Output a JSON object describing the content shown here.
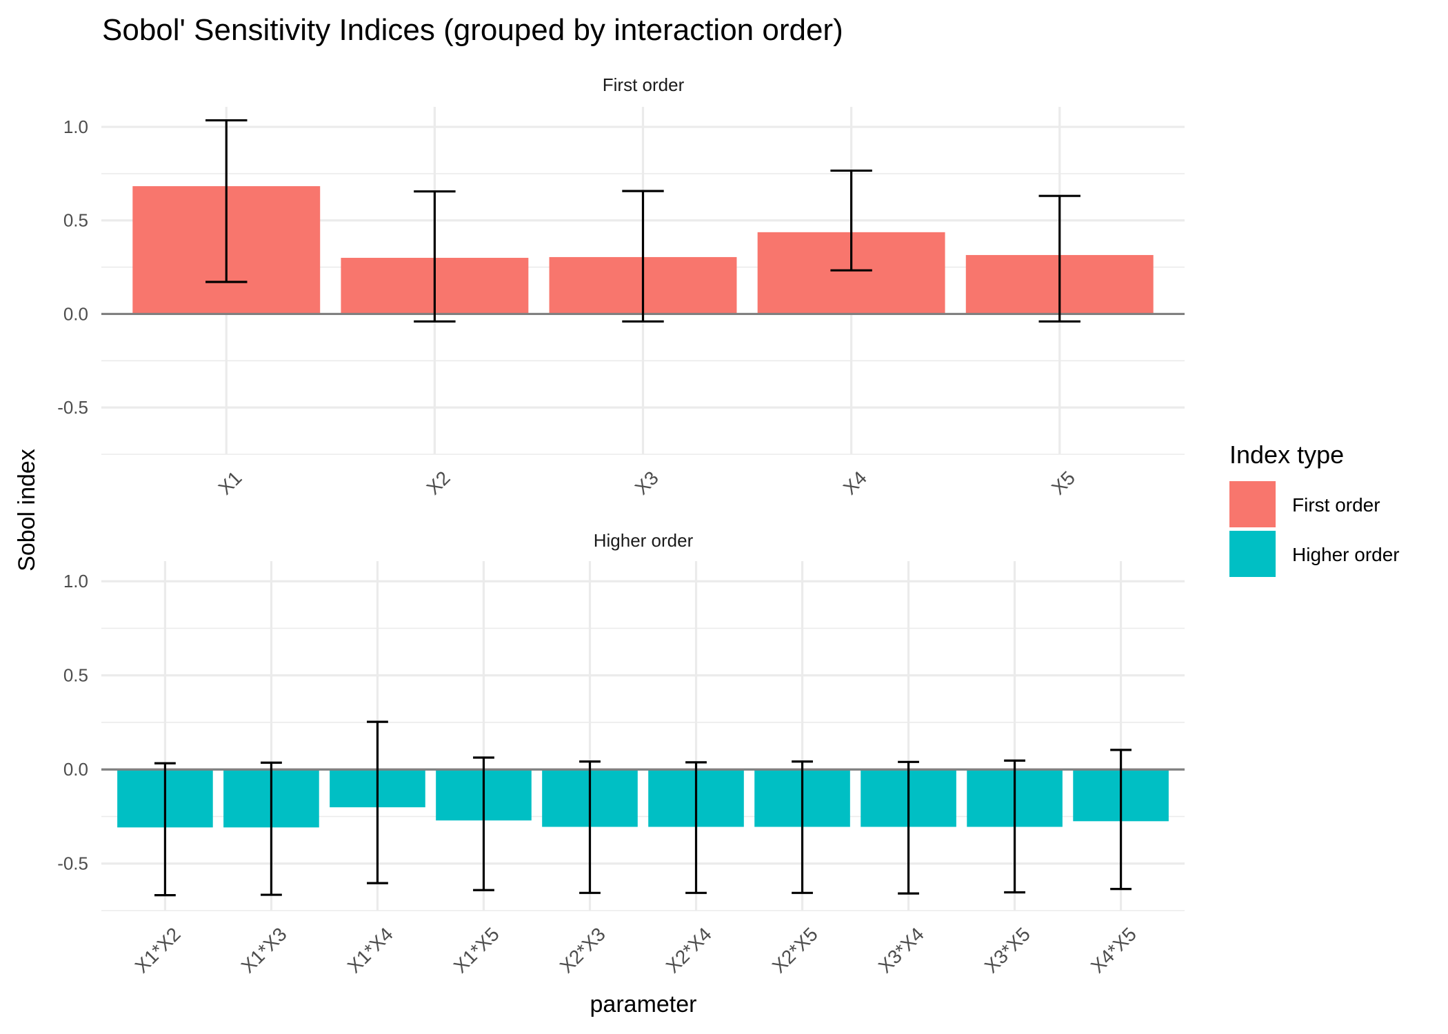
{
  "chart_data": {
    "type": "bar",
    "title": "Sobol' Sensitivity Indices (grouped by interaction order)",
    "xlabel": "parameter",
    "ylabel": "Sobol index",
    "ylim": [
      -0.75,
      1.107
    ],
    "y_ticks": [
      -0.5,
      0.0,
      0.5,
      1.0
    ],
    "y_tick_labels": [
      "-0.5",
      "0.0",
      "0.5",
      "1.0"
    ],
    "y_minor_ticks": [
      -0.75,
      -0.25,
      0.25,
      0.75
    ],
    "grid": true,
    "reference_line": 0,
    "legend": {
      "title": "Index type",
      "position": "right",
      "entries": [
        {
          "label": "First order",
          "color": "#F8766D"
        },
        {
          "label": "Higher order",
          "color": "#00BFC4"
        }
      ]
    },
    "panels": [
      {
        "strip": "First order",
        "color": "#F8766D",
        "categories": [
          "X1",
          "X2",
          "X3",
          "X4",
          "X5"
        ],
        "values": [
          0.683,
          0.3,
          0.304,
          0.437,
          0.315
        ],
        "error_low": [
          0.171,
          -0.04,
          -0.04,
          0.233,
          -0.04
        ],
        "error_high": [
          1.035,
          0.655,
          0.657,
          0.766,
          0.631
        ]
      },
      {
        "strip": "Higher order",
        "color": "#00BFC4",
        "categories": [
          "X1*X2",
          "X1*X3",
          "X1*X4",
          "X1*X5",
          "X2*X3",
          "X2*X4",
          "X2*X5",
          "X3*X4",
          "X3*X5",
          "X4*X5"
        ],
        "values": [
          -0.308,
          -0.308,
          -0.201,
          -0.271,
          -0.305,
          -0.305,
          -0.305,
          -0.305,
          -0.305,
          -0.275
        ],
        "error_low": [
          -0.668,
          -0.666,
          -0.604,
          -0.641,
          -0.656,
          -0.656,
          -0.656,
          -0.659,
          -0.653,
          -0.635
        ],
        "error_high": [
          0.033,
          0.036,
          0.253,
          0.063,
          0.042,
          0.038,
          0.042,
          0.04,
          0.047,
          0.104
        ]
      }
    ]
  }
}
